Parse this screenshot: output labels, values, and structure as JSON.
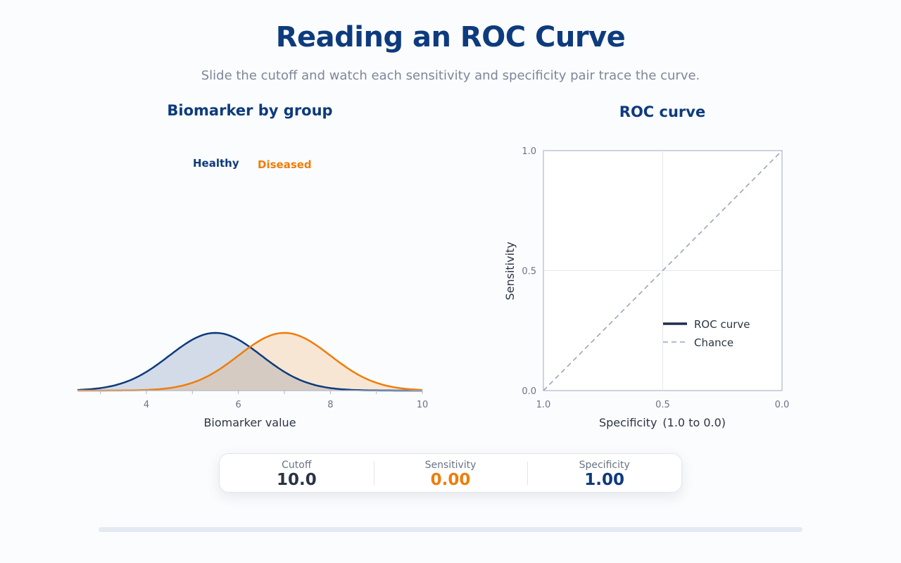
{
  "page": {
    "title": "Reading an ROC Curve",
    "subtitle": "Slide the cutoff and watch each sensitivity and specificity pair trace the curve."
  },
  "stats": {
    "cutoff_label": "Cutoff",
    "cutoff_value": "10.0",
    "sensitivity_label": "Sensitivity",
    "sensitivity_value": "0.00",
    "specificity_label": "Specificity",
    "specificity_value": "1.00"
  },
  "slider": {
    "cutoff": 10.0,
    "min": 2.5,
    "max": 10.0
  },
  "colors": {
    "healthy": "#0d3b7d",
    "diseased": "#ef7d0a",
    "roc": "#1f2d4d",
    "chance": "#9aa6bb",
    "axis": "#aeb8c9",
    "text": "#2b3444",
    "muted": "#6a7385"
  },
  "chart_data": [
    {
      "type": "area",
      "title": "Biomarker by group",
      "xlabel": "Biomarker value",
      "ylabel": "",
      "xlim": [
        2.5,
        10
      ],
      "x_ticks": [
        3,
        4,
        5,
        6,
        7,
        8,
        9,
        10
      ],
      "x_tick_labels": [
        "4",
        "6",
        "8",
        "10"
      ],
      "x_tick_label_values": [
        4,
        6,
        8,
        10
      ],
      "legend": "top-left",
      "series": [
        {
          "name": "Healthy",
          "distribution": "normal",
          "mean": 5.5,
          "sd": 1.0
        },
        {
          "name": "Diseased",
          "distribution": "normal",
          "mean": 7.0,
          "sd": 1.0
        }
      ]
    },
    {
      "type": "line",
      "title": "ROC curve",
      "xlabel": "Specificity",
      "xlabel_note": "(1.0 to 0.0)",
      "ylabel": "Sensitivity",
      "xlim": [
        1.0,
        0.0
      ],
      "ylim": [
        0.0,
        1.0
      ],
      "x_tick_labels": [
        "1.0",
        "0.5",
        "0.0"
      ],
      "x_tick_values": [
        1.0,
        0.5,
        0.0
      ],
      "y_tick_labels": [
        "0.0",
        "0.5",
        "1.0"
      ],
      "y_tick_values": [
        0.0,
        0.5,
        1.0
      ],
      "grid": true,
      "legend": "bottom-right",
      "series": [
        {
          "name": "ROC curve",
          "x": [
            1.0
          ],
          "y": [
            0.0
          ]
        },
        {
          "name": "Chance",
          "x": [
            1.0,
            0.0
          ],
          "y": [
            0.0,
            1.0
          ]
        }
      ]
    }
  ]
}
